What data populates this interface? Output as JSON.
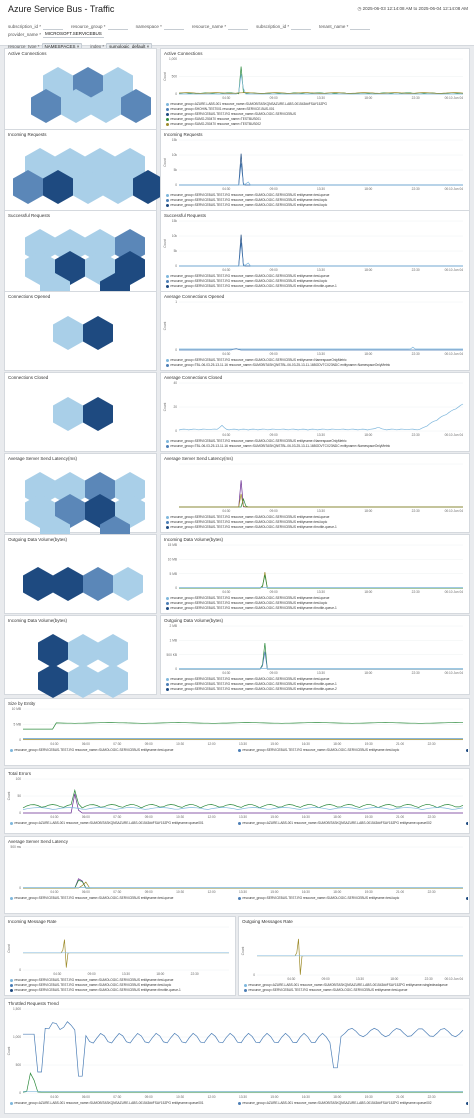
{
  "title": "Azure Service Bus - Traffic",
  "time_range": "2025-06-03 12:14:08 AM to 2025-06-04 12:14:08 AM",
  "filters": [
    {
      "key": "subscription_id",
      "value": ""
    },
    {
      "key": "resource_group",
      "value": ""
    },
    {
      "key": "namespace",
      "value": ""
    },
    {
      "key": "resource_name",
      "value": ""
    },
    {
      "key": "subscription_id2",
      "label": "subscription_id",
      "value": ""
    },
    {
      "key": "tenant_name",
      "value": ""
    },
    {
      "key": "provider_name",
      "value": "MICROSOFT.SERVICEBUS"
    },
    {
      "key": "resource_type",
      "value": "NAMESPACES"
    },
    {
      "key": "index",
      "value": "sumologic_default"
    }
  ],
  "colors": {
    "hex_dark": "#1e4a80",
    "hex_mid": "#5b87b8",
    "hex_light": "#a9cfe8",
    "c1": "#7fb7dc",
    "c2": "#4c7eb6",
    "c3": "#1e4a80",
    "c4": "#2e8b3e",
    "c5": "#9e8c2c",
    "c6": "#6a2c91"
  },
  "panels": {
    "hex1": {
      "title": "Active Connections"
    },
    "chart1": {
      "title": "Active Connections",
      "ylabel": "Count",
      "yticks": [
        "1,000",
        "500",
        "0"
      ],
      "xticks": [
        "04:30",
        "09:00",
        "13:30",
        "18:00",
        "22:30"
      ],
      "xend": "00:10 Jun 04",
      "legend": [
        "resource_group=AZURE-LABS-001 resource_name=SUMOBITASKQNSAZURE-LABS-001543##FSAY15ZPG",
        "resource_group=SHOHIN-TEST001 resource_name=SERVICE-BUS-001",
        "resource_group=SERVICEBUS-TEST-RG resource_name=SUMOLOGIC-SERVICEBUS",
        "resource_group=SUMO-250470 resource_name=TESTBUS001",
        "resource_group=SUMO-250470 resource_name=TESTBUS002"
      ]
    },
    "hex2": {
      "title": "Incoming Requests"
    },
    "chart2": {
      "title": "Incoming Requests",
      "ylabel": "Count",
      "yticks": [
        "15k",
        "10k",
        "5k",
        "0"
      ],
      "xticks": [
        "04:30",
        "09:00",
        "13:30",
        "18:00",
        "22:30"
      ],
      "xend": "00:10 Jun 04",
      "legend": [
        "resource_group=SERVICEBUS-TEST-RG resource_name=SUMOLOGIC-SERVICEBUS entityname=test-queue",
        "resource_group=SERVICEBUS-TEST-RG resource_name=SUMOLOGIC-SERVICEBUS entityname=test-topic",
        "resource_group=SERVICEBUS-TEST-RG resource_name=SUMOLOGIC-SERVICEBUS entityname=test-topic"
      ]
    },
    "hex3": {
      "title": "Successful Requests"
    },
    "chart3": {
      "title": "Successful Requests",
      "ylabel": "Count",
      "yticks": [
        "15k",
        "10k",
        "5k",
        "0"
      ],
      "xticks": [
        "04:30",
        "09:00",
        "13:30",
        "18:00",
        "22:30"
      ],
      "xend": "00:10 Jun 04",
      "legend": [
        "resource_group=SERVICEBUS-TEST-RG resource_name=SUMOLOGIC-SERVICEBUS entityname=test-queue",
        "resource_group=SERVICEBUS-TEST-RG resource_name=SUMOLOGIC-SERVICEBUS entityname=test-topic",
        "resource_group=SERVICEBUS-TEST-RG resource_name=SUMOLOGIC-SERVICEBUS entityname=throttle-queue-1"
      ]
    },
    "hex4": {
      "title": "Connections Opened"
    },
    "chart4": {
      "title": "Average Connections Opened",
      "ylabel": "Count",
      "yticks": [
        "1",
        "0"
      ],
      "xticks": [
        "04:30",
        "09:00",
        "13:30",
        "18:00",
        "22:30"
      ],
      "xend": "00:10 Jun 04",
      "legend": [
        "resource_group=SERVICEBUS-TEST-RG resource_name=SUMOLOGIC-SERVICEBUS entityname=NamespaceOnlyMetric",
        "resource_group=TBL-06-03-25-13-11-16 resource_name=SUMOBITASKQNSTBL-06-03-25-13-11-16BODVTCX23NDC entityname=NamespaceOnlyMetric"
      ]
    },
    "hex5": {
      "title": "Connections Closed"
    },
    "chart5": {
      "title": "Average Connections Closed",
      "ylabel": "Count",
      "yticks": [
        "40",
        "20",
        "0"
      ],
      "xticks": [
        "04:30",
        "09:00",
        "13:30",
        "18:00",
        "22:30"
      ],
      "xend": "00:10 Jun 04",
      "legend": [
        "resource_group=SERVICEBUS-TEST-RG resource_name=SUMOLOGIC-SERVICEBUS entityname=NamespaceOnlyMetric",
        "resource_group=TBL-06-03-25-13-11-16 resource_name=SUMOBITASKQNSTBL-06-03-25-13-11-16BODVTCX23NDC entityname=NamespaceOnlyMetric"
      ]
    },
    "hex6": {
      "title": "Average Server Send Latency(ms)"
    },
    "chart6": {
      "title": "Average Server Send Latency(ms)",
      "ylabel": "",
      "yticks": [
        "",
        ""
      ],
      "xticks": [
        "04:30",
        "09:00",
        "13:30",
        "18:00",
        "22:30"
      ],
      "xend": "00:10 Jun 04",
      "legend": [
        "resource_group=SERVICEBUS-TEST-RG resource_name=SUMOLOGIC-SERVICEBUS entityname=test-queue",
        "resource_group=SERVICEBUS-TEST-RG resource_name=SUMOLOGIC-SERVICEBUS entityname=test-topic",
        "resource_group=SERVICEBUS-TEST-RG resource_name=SUMOLOGIC-SERVICEBUS entityname=throttle-queue-1"
      ]
    },
    "hex7": {
      "title": "Outgoing Data Volume(bytes)"
    },
    "chart7": {
      "title": "Incoming Data Volume(bytes)",
      "ylabel": "",
      "yticks": [
        "15 MB",
        "10 MB",
        "5 MB",
        "0"
      ],
      "xticks": [
        "04:30",
        "09:00",
        "13:30",
        "18:00",
        "22:30"
      ],
      "xend": "00:10 Jun 04",
      "legend": [
        "resource_group=SERVICEBUS-TEST-RG resource_name=SUMOLOGIC-SERVICEBUS entityname=test-queue",
        "resource_group=SERVICEBUS-TEST-RG resource_name=SUMOLOGIC-SERVICEBUS entityname=test-topic",
        "resource_group=SERVICEBUS-TEST-RG resource_name=SUMOLOGIC-SERVICEBUS entityname=throttle-queue-1"
      ]
    },
    "hex8": {
      "title": "Incoming Data Volume(bytes)"
    },
    "chart8": {
      "title": "Outgoing Data Volume(bytes)",
      "ylabel": "",
      "yticks": [
        "2 MB",
        "1 MB",
        "500 KB",
        "0"
      ],
      "xticks": [
        "04:30",
        "09:00",
        "13:30",
        "18:00",
        "22:30"
      ],
      "xend": "00:10 Jun 04",
      "legend": [
        "resource_group=SERVICEBUS-TEST-RG resource_name=SUMOLOGIC-SERVICEBUS entityname=test-queue",
        "resource_group=SERVICEBUS-TEST-RG resource_name=SUMOLOGIC-SERVICEBUS entityname=throttle-queue-1",
        "resource_group=SERVICEBUS-TEST-RG resource_name=SUMOLOGIC-SERVICEBUS entityname=throttle-queue-2"
      ]
    },
    "wide1": {
      "title": "Size by Entity",
      "ylabel": "",
      "yticks": [
        "10 MB",
        "5 MB",
        "0"
      ],
      "xticks": [
        "04:30",
        "06:00",
        "07:30",
        "09:00",
        "10:30",
        "12:00",
        "13:30",
        "15:00",
        "16:30",
        "18:00",
        "19:30",
        "21:00",
        "22:30"
      ],
      "xend": "",
      "legend": [
        "resource_group=SERVICEBUS-TEST-RG resource_name=SUMOLOGIC-SERVICEBUS entityname=test-queue",
        "resource_group=SERVICEBUS-TEST-RG resource_name=SUMOLOGIC-SERVICEBUS entityname=test-topic",
        "resource_group=SERVICEBUS-TEST-RG resource_name=SUMOLOGIC-SERVICEBUS entityname=throttle-queue-1",
        "resource_group=SERVICEBUS-TEST-RG resource_name=SUMOLOGIC-SERVICEBUS entityname=throttle-queue-2",
        "resource_group=SERVICEBUS-TEST-RG resource_name=SUMOLOGIC-SERVICEBUS entityname=throttle-queue-3",
        "resource_group=SERVICEBUS-TEST-RG resource_name=SUMOLOGIC-SERVICEBUS entityname=throttle-topic-1"
      ]
    },
    "wide2": {
      "title": "Total Errors",
      "ylabel": "Count",
      "yticks": [
        "100",
        "50",
        "0"
      ],
      "xticks": [
        "04:30",
        "06:00",
        "07:30",
        "09:00",
        "10:30",
        "12:00",
        "13:30",
        "15:00",
        "16:30",
        "18:00",
        "19:30",
        "21:00",
        "22:30"
      ],
      "xend": "",
      "legend": [
        "resource_group=AZURE-LABS-001 resource_name=SUMOBITASKQNSAZURE-LABS-001543##FSAY15ZPG entityname=queue001",
        "resource_group=AZURE-LABS-001 resource_name=SUMOBITASKQNSAZURE-LABS-001543##FSAY15ZPG entityname=queue002",
        "resource_group=AZURE-LABS-001 resource_name=SUMOBITASKQNSAZURE-LABS-001543##FSAY15ZPG entityname=topic001"
      ]
    },
    "wide3": {
      "title": "Average Server Send Latency",
      "ylabel": "",
      "yticks": [
        "500 ms",
        "0"
      ],
      "xticks": [
        "04:30",
        "06:00",
        "07:30",
        "09:00",
        "10:30",
        "12:00",
        "13:30",
        "15:00",
        "16:30",
        "18:00",
        "19:30",
        "21:00",
        "22:30"
      ],
      "xend": "",
      "legend": [
        "resource_group=SERVICEBUS-TEST-RG resource_name=SUMOLOGIC-SERVICEBUS entityname=test-queue",
        "resource_group=SERVICEBUS-TEST-RG resource_name=SUMOLOGIC-SERVICEBUS entityname=test-topic",
        "resource_group=SERVICEBUS-TEST-RG resource_name=SUMOLOGIC-SERVICEBUS entityname=throttle-queue-1",
        "resource_group=SERVICEBUS-TEST-RG resource_name=SUMOLOGIC-SERVICEBUS entityname=throttle-queue-2",
        "resource_group=SERVICEBUS-TEST-RG resource_name=SUMOLOGIC-SERVICEBUS entityname=throttle-queue-3",
        "resource_group=SERVICEBUS-TEST-RG resource_name=SUMOLOGIC-SERVICEBUS entityname=throttle-topic-1"
      ]
    },
    "half1": {
      "title": "Incoming Message Rate",
      "ylabel": "Count",
      "yticks": [
        "",
        "0"
      ],
      "xticks": [
        "04:30",
        "09:00",
        "13:30",
        "18:00",
        "22:30"
      ],
      "xend": "",
      "legend": [
        "resource_group=SERVICEBUS-TEST-RG resource_name=SUMOLOGIC-SERVICEBUS entityname=test-queue",
        "resource_group=SERVICEBUS-TEST-RG resource_name=SUMOLOGIC-SERVICEBUS entityname=test-topic",
        "resource_group=SERVICEBUS-TEST-RG resource_name=SUMOLOGIC-SERVICEBUS entityname=throttle-queue-1"
      ]
    },
    "half2": {
      "title": "Outgoing Messages Rate",
      "ylabel": "Count",
      "yticks": [
        "",
        "0"
      ],
      "xticks": [
        "04:30",
        "09:00",
        "13:30",
        "18:00",
        "22:30"
      ],
      "xend": "00:10 Jun 04",
      "legend": [
        "resource_group=AZURE-LABS-001 resource_name=SUMOBITASKQNSAZURE-LABS-001543##FSAY15ZPG entityname=singledeadqueue",
        "resource_group=SERVICEBUS-TEST-RG resource_name=SUMOLOGIC-SERVICEBUS entityname=test-queue"
      ]
    },
    "wide4": {
      "title": "Throttled Requests Trend",
      "ylabel": "Count",
      "yticks": [
        "1,500",
        "1,000",
        "500",
        "0"
      ],
      "xticks": [
        "04:30",
        "06:00",
        "07:30",
        "09:00",
        "10:30",
        "12:00",
        "13:30",
        "15:00",
        "16:30",
        "18:00",
        "19:30",
        "21:00",
        "22:30"
      ],
      "xend": "",
      "legend": [
        "resource_group=AZURE-LABS-001 resource_name=SUMOBITASKQNSAZURE-LABS-001543##FSAY15ZPG entityname=queue001",
        "resource_group=AZURE-LABS-001 resource_name=SUMOBITASKQNSAZURE-LABS-001543##FSAY15ZPG entityname=queue002",
        "resource_group=AZURE-LABS-001 resource_name=SUMOBITASKQNSAZURE-LABS-001543##FSAY15ZPG entityname=topic001"
      ]
    }
  },
  "chart_data": [
    {
      "type": "line",
      "title": "Active Connections",
      "ylim": [
        0,
        1000
      ],
      "series": [
        {
          "values": [
            0,
            0,
            950,
            0,
            0,
            0,
            0,
            0,
            0,
            0,
            0,
            0,
            0
          ]
        }
      ]
    },
    {
      "type": "line",
      "title": "Incoming Requests",
      "ylim": [
        0,
        15000
      ],
      "series": [
        {
          "values": [
            0,
            0,
            14000,
            0,
            0,
            0,
            0,
            0,
            0,
            0,
            0,
            0,
            0
          ]
        }
      ]
    },
    {
      "type": "line",
      "title": "Successful Requests",
      "ylim": [
        0,
        15000
      ],
      "series": [
        {
          "values": [
            0,
            0,
            14000,
            0,
            0,
            0,
            0,
            0,
            0,
            0,
            0,
            0,
            0
          ]
        }
      ]
    },
    {
      "type": "line",
      "title": "Average Connections Opened",
      "ylim": [
        0,
        1
      ],
      "series": [
        {
          "values": [
            0,
            0,
            0,
            0,
            0,
            0,
            0,
            0,
            0,
            0,
            0,
            1,
            0
          ]
        }
      ]
    },
    {
      "type": "line",
      "title": "Average Connections Closed",
      "ylim": [
        0,
        40
      ],
      "series": [
        {
          "values": [
            0,
            0,
            2,
            0,
            1,
            0,
            0,
            1,
            0,
            1,
            2,
            8,
            18
          ]
        }
      ]
    },
    {
      "type": "line",
      "title": "Throttled Requests Trend",
      "ylim": [
        0,
        1500
      ],
      "series": [
        {
          "values": [
            1100,
            400,
            1300,
            300,
            1200,
            1100,
            1250,
            1000,
            1200,
            1150,
            1250,
            600,
            1050
          ]
        }
      ]
    }
  ],
  "hex_tiles": {
    "hex1": [
      "light",
      "mid",
      "light",
      "mid",
      "light",
      "light",
      "mid"
    ],
    "hex2": [
      "light",
      "light",
      "light",
      "light",
      "mid",
      "dark",
      "light",
      "light",
      "dark"
    ],
    "hex3": [
      "light",
      "light",
      "light",
      "mid",
      "light",
      "dark",
      "light",
      "dark",
      "light",
      "dark"
    ],
    "hex4": [
      "light",
      "dark"
    ],
    "hex5": [
      "light",
      "dark"
    ],
    "hex6": [
      "light",
      "light",
      "mid",
      "light",
      "light",
      "mid",
      "dark",
      "light",
      "light",
      "mid"
    ],
    "hex7": [
      "dark",
      "dark",
      "mid",
      "light"
    ],
    "hex8": [
      "dark",
      "light",
      "light",
      "dark",
      "light",
      "light"
    ]
  }
}
